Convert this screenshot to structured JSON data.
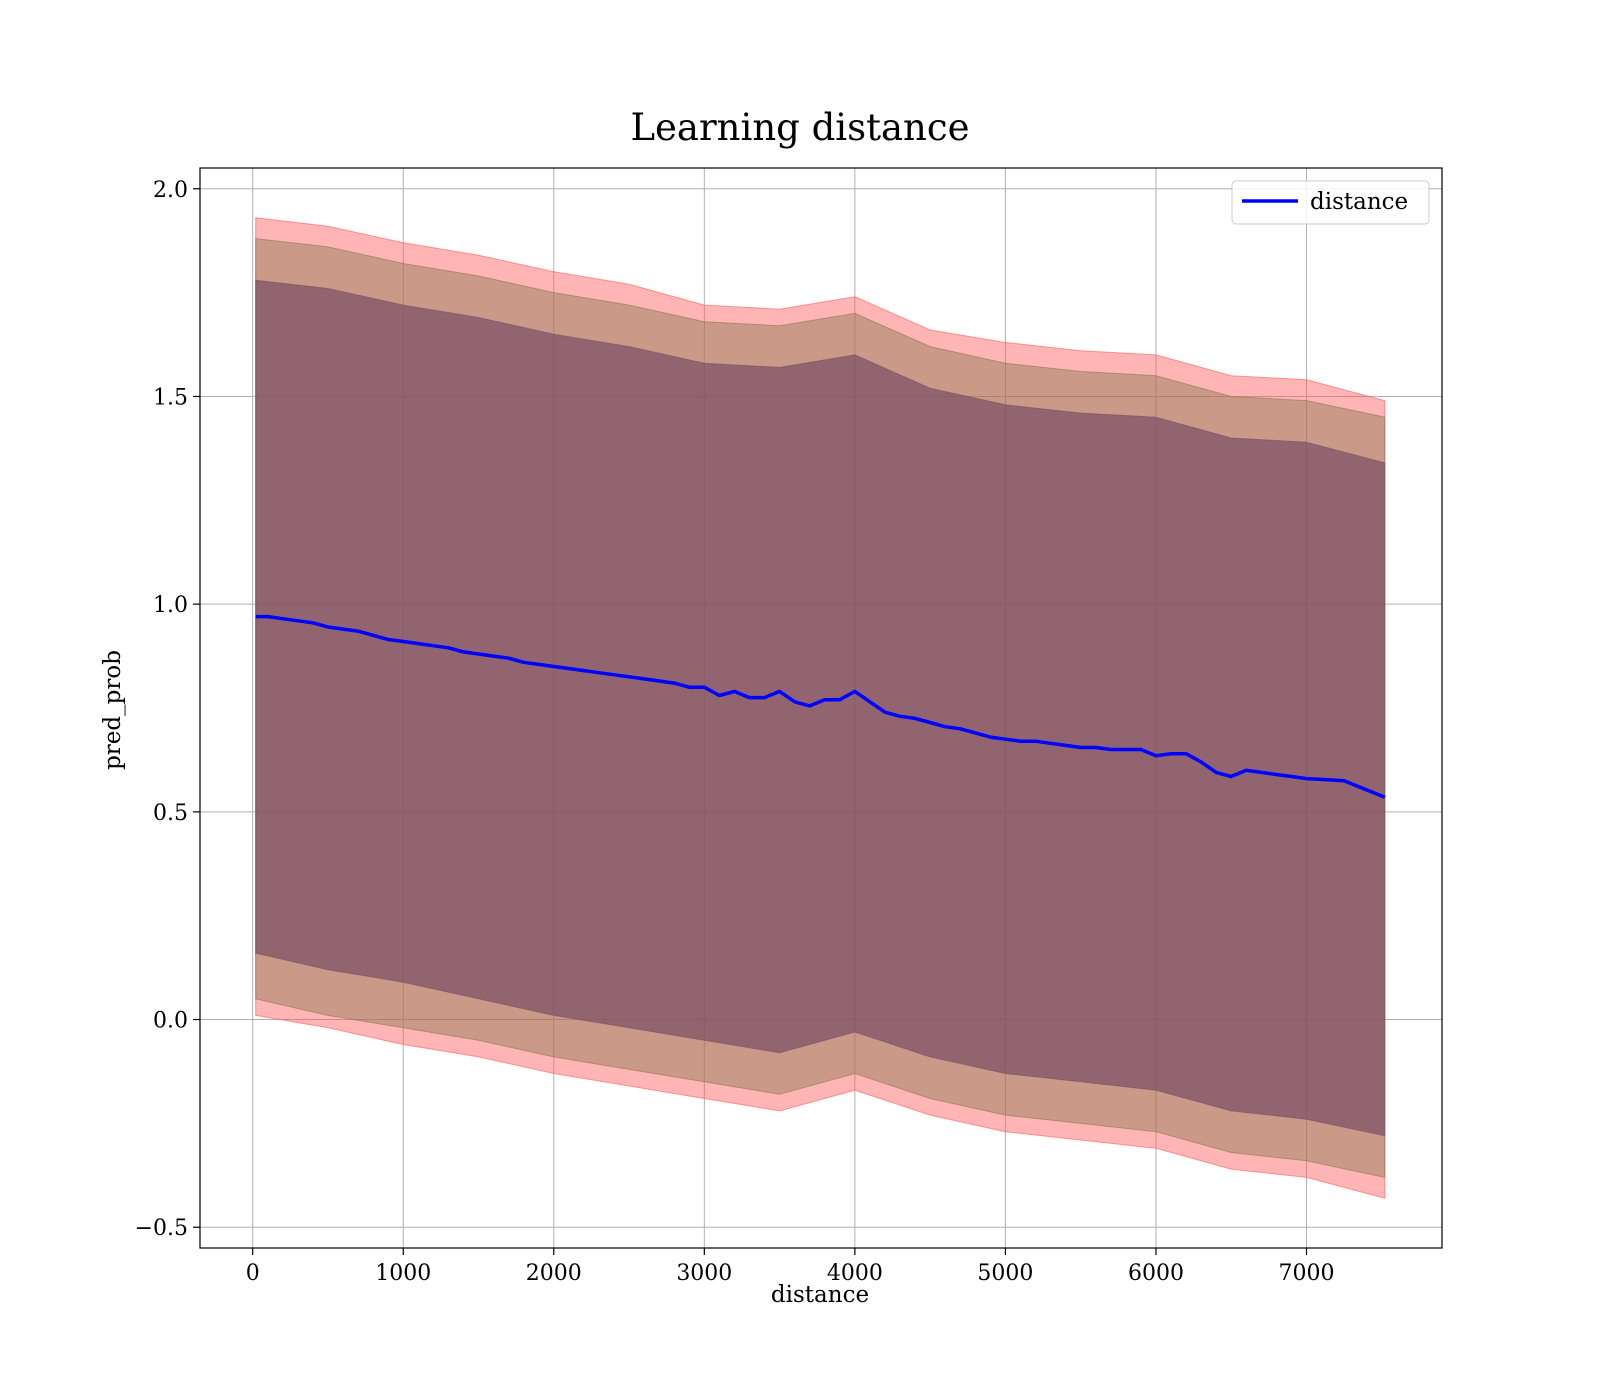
{
  "chart_data": {
    "type": "line",
    "title": "Learning distance",
    "xlabel": "distance",
    "ylabel": "pred_prob",
    "xlim": [
      -350,
      7900
    ],
    "ylim": [
      -0.55,
      2.05
    ],
    "xticks": [
      0,
      1000,
      2000,
      3000,
      4000,
      5000,
      6000,
      7000
    ],
    "xtick_labels": [
      "0",
      "1000",
      "2000",
      "3000",
      "4000",
      "5000",
      "6000",
      "7000"
    ],
    "yticks": [
      -0.5,
      0.0,
      0.5,
      1.0,
      1.5,
      2.0
    ],
    "ytick_labels": [
      "−0.5",
      "0.0",
      "0.5",
      "1.0",
      "1.5",
      "2.0"
    ],
    "grid": true,
    "legend_position": "upper-right",
    "series": [
      {
        "name": "distance",
        "color": "#0000ff",
        "x": [
          20,
          100,
          200,
          300,
          400,
          500,
          600,
          700,
          800,
          900,
          1000,
          1100,
          1200,
          1300,
          1400,
          1500,
          1600,
          1700,
          1800,
          1900,
          2000,
          2100,
          2200,
          2300,
          2400,
          2500,
          2600,
          2700,
          2800,
          2900,
          3000,
          3100,
          3200,
          3300,
          3400,
          3500,
          3600,
          3700,
          3800,
          3900,
          4000,
          4100,
          4200,
          4300,
          4400,
          4500,
          4600,
          4700,
          4800,
          4900,
          5000,
          5100,
          5200,
          5300,
          5400,
          5500,
          5600,
          5700,
          5800,
          5900,
          6000,
          6100,
          6200,
          6300,
          6400,
          6500,
          6600,
          6700,
          6800,
          6900,
          7000,
          7100,
          7250,
          7520
        ],
        "y": [
          0.97,
          0.97,
          0.965,
          0.96,
          0.955,
          0.945,
          0.94,
          0.935,
          0.925,
          0.915,
          0.91,
          0.905,
          0.9,
          0.895,
          0.885,
          0.88,
          0.875,
          0.87,
          0.86,
          0.855,
          0.85,
          0.845,
          0.84,
          0.835,
          0.83,
          0.825,
          0.82,
          0.815,
          0.81,
          0.8,
          0.8,
          0.78,
          0.79,
          0.775,
          0.775,
          0.79,
          0.765,
          0.755,
          0.77,
          0.77,
          0.79,
          0.765,
          0.74,
          0.73,
          0.725,
          0.715,
          0.705,
          0.7,
          0.69,
          0.68,
          0.675,
          0.67,
          0.67,
          0.665,
          0.66,
          0.655,
          0.655,
          0.65,
          0.65,
          0.65,
          0.635,
          0.64,
          0.64,
          0.62,
          0.595,
          0.585,
          0.6,
          0.595,
          0.59,
          0.585,
          0.58,
          0.578,
          0.575,
          0.535
        ]
      }
    ],
    "bands": [
      {
        "color": "#ff5a5a",
        "opacity": 0.45,
        "x": [
          20,
          500,
          1000,
          1500,
          2000,
          2500,
          3000,
          3500,
          4000,
          4500,
          5000,
          5500,
          6000,
          6500,
          7000,
          7520
        ],
        "lower": [
          0.01,
          -0.02,
          -0.06,
          -0.09,
          -0.13,
          -0.16,
          -0.19,
          -0.22,
          -0.17,
          -0.23,
          -0.27,
          -0.29,
          -0.31,
          -0.36,
          -0.38,
          -0.43
        ],
        "upper": [
          1.93,
          1.91,
          1.87,
          1.84,
          1.8,
          1.77,
          1.72,
          1.71,
          1.74,
          1.66,
          1.63,
          1.61,
          1.6,
          1.55,
          1.54,
          1.49
        ]
      },
      {
        "color": "#8c7850",
        "opacity": 0.45,
        "x": [
          20,
          500,
          1000,
          1500,
          2000,
          2500,
          3000,
          3500,
          4000,
          4500,
          5000,
          5500,
          6000,
          6500,
          7000,
          7520
        ],
        "lower": [
          0.05,
          0.01,
          -0.02,
          -0.05,
          -0.09,
          -0.12,
          -0.15,
          -0.18,
          -0.13,
          -0.19,
          -0.23,
          -0.25,
          -0.27,
          -0.32,
          -0.34,
          -0.38
        ],
        "upper": [
          1.88,
          1.86,
          1.82,
          1.79,
          1.75,
          1.72,
          1.68,
          1.67,
          1.7,
          1.62,
          1.58,
          1.56,
          1.55,
          1.5,
          1.49,
          1.45
        ]
      },
      {
        "color": "#7a4f66",
        "opacity": 0.72,
        "x": [
          20,
          500,
          1000,
          1500,
          2000,
          2500,
          3000,
          3500,
          4000,
          4500,
          5000,
          5500,
          6000,
          6500,
          7000,
          7520
        ],
        "lower": [
          0.16,
          0.12,
          0.09,
          0.05,
          0.01,
          -0.02,
          -0.05,
          -0.08,
          -0.03,
          -0.09,
          -0.13,
          -0.15,
          -0.17,
          -0.22,
          -0.24,
          -0.28
        ],
        "upper": [
          1.78,
          1.76,
          1.72,
          1.69,
          1.65,
          1.62,
          1.58,
          1.57,
          1.6,
          1.52,
          1.48,
          1.46,
          1.45,
          1.4,
          1.39,
          1.34
        ]
      }
    ]
  }
}
